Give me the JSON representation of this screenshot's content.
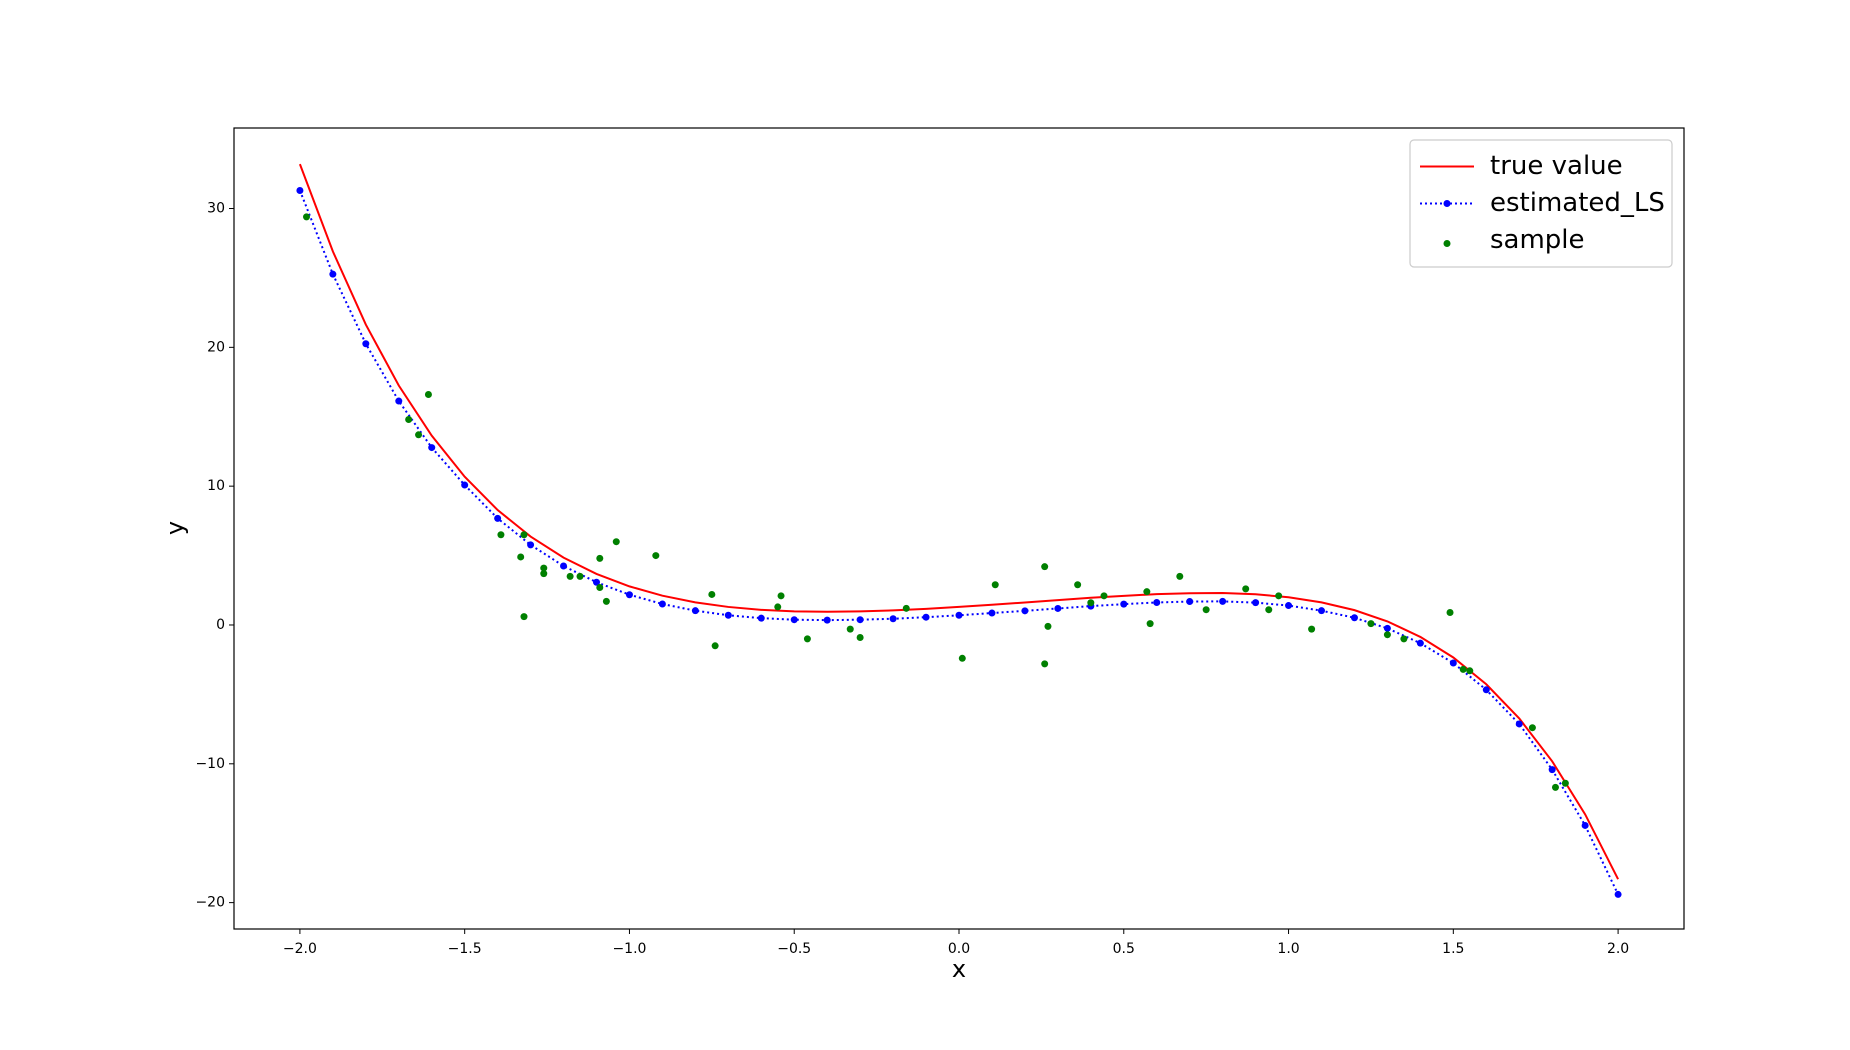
{
  "chart_data": {
    "type": "line",
    "x_label": "x",
    "y_label": "y",
    "xlim": [
      -2.2,
      2.2
    ],
    "ylim": [
      -21.9,
      35.8
    ],
    "xticks": [
      {
        "value": -2,
        "label": "−2.0"
      },
      {
        "value": -1.5,
        "label": "−1.5"
      },
      {
        "value": -1,
        "label": "−1.0"
      },
      {
        "value": -0.5,
        "label": "−0.5"
      },
      {
        "value": 0,
        "label": "0.0"
      },
      0.5,
      {
        "value": 1,
        "label": "1.0"
      },
      {
        "value": 1.5,
        "label": "1.5"
      },
      {
        "value": 2,
        "label": "2.0"
      }
    ],
    "yticks": [
      {
        "value": -20,
        "label": "−20"
      },
      {
        "value": -10,
        "label": "−10"
      },
      0,
      10,
      20,
      30
    ],
    "grid": false,
    "legend": "upper right",
    "x": [
      -2.0,
      -1.9,
      -1.8,
      -1.7,
      -1.6,
      -1.5,
      -1.4,
      -1.3,
      -1.2,
      -1.1,
      -1.0,
      -0.9,
      -0.8,
      -0.7,
      -0.6,
      -0.5,
      -0.4,
      -0.3,
      -0.2,
      -0.1,
      0.0,
      0.1,
      0.2,
      0.3,
      0.4,
      0.5,
      0.6,
      0.7,
      0.8,
      0.9,
      1.0,
      1.1,
      1.2,
      1.3,
      1.4,
      1.5,
      1.6,
      1.7,
      1.8,
      1.9,
      2.0
    ],
    "series": [
      {
        "name": "true value",
        "kind": "line",
        "color": "#ff0000",
        "linestyle": "solid",
        "values": [
          33.2,
          26.91,
          21.64,
          17.25,
          13.64,
          10.68,
          8.28,
          6.37,
          4.85,
          3.68,
          2.78,
          2.11,
          1.63,
          1.3,
          1.09,
          0.98,
          0.95,
          0.98,
          1.05,
          1.16,
          1.3,
          1.46,
          1.62,
          1.79,
          1.96,
          2.1,
          2.22,
          2.29,
          2.3,
          2.21,
          2.0,
          1.63,
          1.07,
          0.26,
          -0.86,
          -2.34,
          -4.27,
          -6.73,
          -9.82,
          -13.64,
          -18.31
        ]
      },
      {
        "name": "estimated_LS",
        "kind": "line",
        "color": "#0000ff",
        "linestyle": "dotted",
        "marker": "o",
        "values": [
          31.3,
          25.27,
          20.26,
          16.13,
          12.78,
          10.08,
          7.68,
          5.77,
          4.25,
          3.08,
          2.18,
          1.51,
          1.03,
          0.7,
          0.49,
          0.38,
          0.35,
          0.38,
          0.45,
          0.56,
          0.7,
          0.86,
          1.02,
          1.19,
          1.36,
          1.5,
          1.62,
          1.69,
          1.7,
          1.61,
          1.4,
          1.03,
          0.52,
          -0.24,
          -1.31,
          -2.74,
          -4.67,
          -7.13,
          -10.42,
          -14.44,
          -19.41
        ]
      },
      {
        "name": "sample",
        "kind": "scatter",
        "color": "#008000",
        "marker": "o",
        "x": [
          -1.98,
          -1.61,
          -1.64,
          -1.67,
          -1.39,
          -1.32,
          -1.33,
          -1.32,
          -1.26,
          -1.26,
          -1.18,
          -1.15,
          -1.09,
          -1.09,
          -1.07,
          -1.04,
          -0.92,
          -0.75,
          -0.74,
          -0.55,
          -0.54,
          -0.46,
          -0.33,
          -0.3,
          -0.16,
          0.01,
          0.11,
          0.26,
          0.26,
          0.27,
          0.36,
          0.4,
          0.44,
          0.57,
          0.58,
          0.67,
          0.75,
          0.87,
          0.94,
          0.97,
          1.07,
          1.25,
          1.3,
          1.35,
          1.49,
          1.53,
          1.55,
          1.74,
          1.81,
          1.84
        ],
        "values": [
          29.4,
          16.6,
          13.7,
          14.8,
          6.5,
          6.5,
          4.9,
          0.6,
          4.1,
          3.7,
          3.5,
          3.5,
          4.8,
          2.7,
          1.7,
          6.0,
          5.0,
          2.2,
          -1.5,
          1.3,
          2.1,
          -1.0,
          -0.3,
          -0.9,
          1.2,
          -2.4,
          2.9,
          4.2,
          -2.8,
          -0.1,
          2.9,
          1.6,
          2.1,
          2.4,
          0.1,
          3.5,
          1.1,
          2.6,
          1.1,
          2.1,
          -0.3,
          0.1,
          -0.7,
          -1.0,
          0.9,
          -3.2,
          -3.3,
          -7.4,
          -11.7,
          -11.4
        ]
      }
    ]
  }
}
